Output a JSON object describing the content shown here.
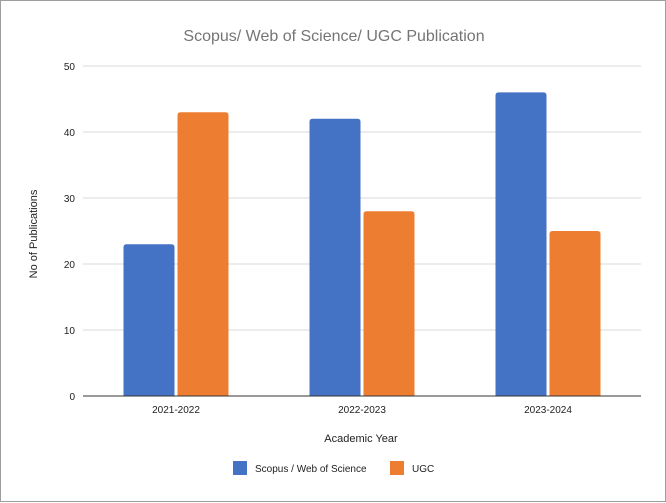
{
  "chart_data": {
    "type": "bar",
    "title": "Scopus/ Web of Science/ UGC Publication",
    "xlabel": "Academic Year",
    "ylabel": "No of Publications",
    "categories": [
      "2021-2022",
      "2022-2023",
      "2023-2024"
    ],
    "series": [
      {
        "name": "Scopus / Web of Science",
        "values": [
          23,
          42,
          46
        ],
        "color": "#4472C4"
      },
      {
        "name": "UGC",
        "values": [
          43,
          28,
          25
        ],
        "color": "#ED7D31"
      }
    ],
    "ylim": [
      0,
      50
    ],
    "yticks": [
      "0",
      "10",
      "20",
      "30",
      "40",
      "50"
    ],
    "grid": true,
    "legend_position": "bottom"
  }
}
